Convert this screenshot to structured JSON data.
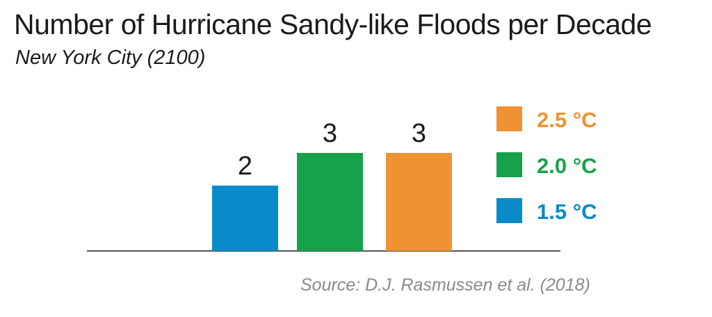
{
  "title": "Number of Hurricane Sandy-like Floods per Decade",
  "subtitle": "New York City (2100)",
  "source": "Source: D.J. Rasmussen et al. (2018)",
  "chart_data": {
    "type": "bar",
    "title": "Number of Hurricane Sandy-like Floods per Decade",
    "subtitle": "New York City (2100)",
    "categories": [
      "1.5 °C",
      "2.0 °C",
      "2.5 °C"
    ],
    "values": [
      2,
      3,
      3
    ],
    "data_labels": [
      "2",
      "3",
      "3"
    ],
    "colors": [
      "#0a8ac8",
      "#17a14a",
      "#ef9233"
    ],
    "ylim": [
      0,
      3.5
    ],
    "grid": false,
    "legend": {
      "placement": "right",
      "entries": [
        {
          "label": "2.5 °C",
          "color": "#ef9233"
        },
        {
          "label": "2.0 °C",
          "color": "#17a14a"
        },
        {
          "label": "1.5 °C",
          "color": "#0a8ac8"
        }
      ]
    },
    "xlabel": "",
    "ylabel": ""
  }
}
